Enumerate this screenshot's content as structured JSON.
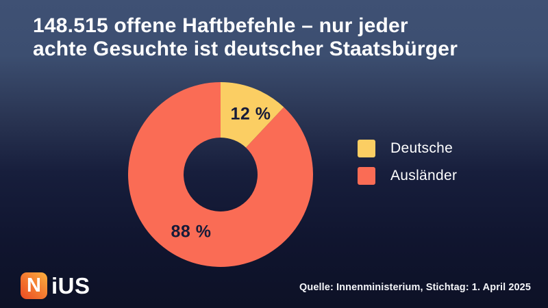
{
  "header": {
    "title_line1": "148.515 offene Haftbefehle – nur jeder",
    "title_line2": "achte Gesuchte ist deutscher Staatsbürger"
  },
  "chart_data": {
    "type": "pie",
    "donut": true,
    "title": "148.515 offene Haftbefehle – nur jeder achte Gesuchte ist deutscher Staatsbürger",
    "categories": [
      "Deutsche",
      "Ausländer"
    ],
    "values": [
      12,
      88
    ],
    "colors": [
      "#FBCE63",
      "#FA6C55"
    ],
    "slice_labels": [
      "12 %",
      "88 %"
    ],
    "slice_label_color": "#161B39",
    "legend_position": "right",
    "start_angle_deg": -90,
    "inner_radius_ratio": 0.4
  },
  "footer": {
    "logo_n": "N",
    "logo_rest": "iUS",
    "source": "Quelle: Innenministerium, Stichtag: 1. April 2025"
  }
}
